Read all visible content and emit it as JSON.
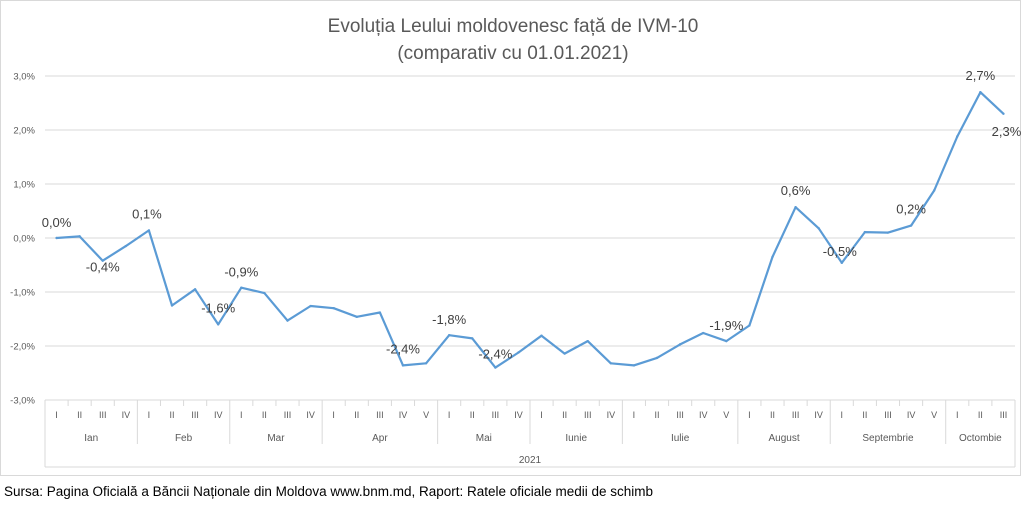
{
  "source_text": "Sursa: Pagina Oficială a Băncii Naționale din Moldova www.bnm.md, Raport: Ratele oficiale medii de schimb",
  "colors": {
    "line": "#5b9bd5",
    "grid": "#d9d9d9",
    "text": "#595959"
  },
  "chart_data": {
    "type": "line",
    "title": "Evoluția Leului moldovenesc față de IVM-10",
    "subtitle": "(comparativ cu 01.01.2021)",
    "year_label": "2021",
    "ylim": [
      -3.0,
      3.0
    ],
    "yticks": [
      "3,0%",
      "2,0%",
      "1,0%",
      "0,0%",
      "-1,0%",
      "-2,0%",
      "-3,0%"
    ],
    "ytick_values": [
      3,
      2,
      1,
      0,
      -1,
      -2,
      -3
    ],
    "grid": true,
    "months": [
      {
        "name": "Ian",
        "weeks": [
          "I",
          "II",
          "III",
          "IV"
        ]
      },
      {
        "name": "Feb",
        "weeks": [
          "I",
          "II",
          "III",
          "IV"
        ]
      },
      {
        "name": "Mar",
        "weeks": [
          "I",
          "II",
          "III",
          "IV"
        ]
      },
      {
        "name": "Apr",
        "weeks": [
          "I",
          "II",
          "III",
          "IV",
          "V"
        ]
      },
      {
        "name": "Mai",
        "weeks": [
          "I",
          "II",
          "III",
          "IV"
        ]
      },
      {
        "name": "Iunie",
        "weeks": [
          "I",
          "II",
          "III",
          "IV"
        ]
      },
      {
        "name": "Iulie",
        "weeks": [
          "I",
          "II",
          "III",
          "IV",
          "V"
        ]
      },
      {
        "name": "August",
        "weeks": [
          "I",
          "II",
          "III",
          "IV"
        ]
      },
      {
        "name": "Septembrie",
        "weeks": [
          "I",
          "II",
          "III",
          "IV",
          "V"
        ]
      },
      {
        "name": "Octombie",
        "weeks": [
          "I",
          "II",
          "III"
        ]
      }
    ],
    "values": [
      0.0,
      0.03,
      -0.42,
      -0.15,
      0.14,
      -1.25,
      -0.95,
      -1.6,
      -0.92,
      -1.02,
      -1.53,
      -1.26,
      -1.3,
      -1.46,
      -1.38,
      -2.36,
      -2.32,
      -1.8,
      -1.86,
      -2.4,
      -2.12,
      -1.81,
      -2.14,
      -1.91,
      -2.32,
      -2.36,
      -2.22,
      -1.97,
      -1.76,
      -1.91,
      -1.62,
      -0.35,
      0.57,
      0.18,
      -0.46,
      0.11,
      0.1,
      0.23,
      0.88,
      1.88,
      2.7,
      2.3
    ],
    "data_labels": [
      {
        "index": 0,
        "text": "0,0%"
      },
      {
        "index": 2,
        "text": "-0,4%"
      },
      {
        "index": 4,
        "text": "0,1%"
      },
      {
        "index": 7,
        "text": "-1,6%"
      },
      {
        "index": 8,
        "text": "-0,9%"
      },
      {
        "index": 15,
        "text": "-2,4%"
      },
      {
        "index": 17,
        "text": "-1,8%"
      },
      {
        "index": 19,
        "text": "-2,4%"
      },
      {
        "index": 29,
        "text": "-1,9%"
      },
      {
        "index": 32,
        "text": "0,6%"
      },
      {
        "index": 34,
        "text": "-0,5%"
      },
      {
        "index": 37,
        "text": "0,2%"
      },
      {
        "index": 40,
        "text": "2,7%"
      },
      {
        "index": 41,
        "text": "2,3%"
      }
    ]
  }
}
